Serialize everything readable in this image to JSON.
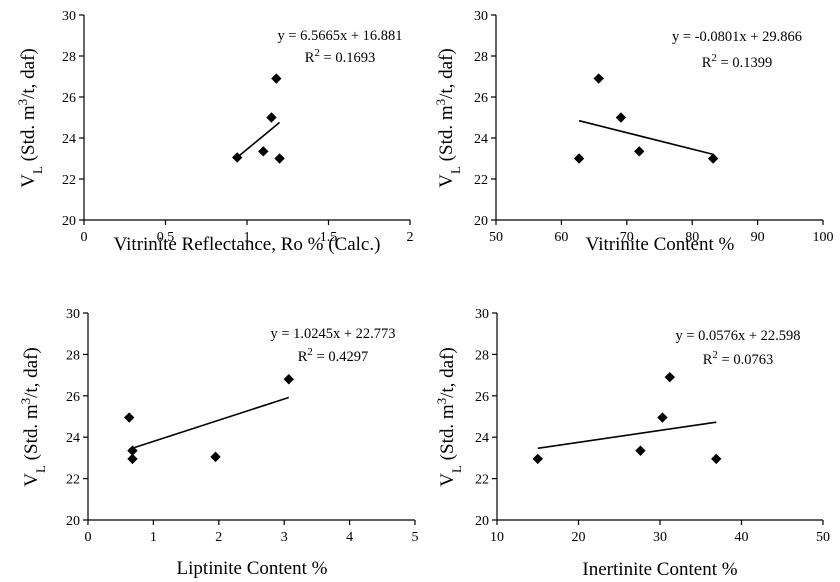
{
  "chart_data": [
    {
      "type": "scatter",
      "xlabel": "Vitrinite Reflectance, Ro % (Calc.)",
      "ylabel": {
        "base": "V",
        "sub": "L",
        "pre": " (Std. m",
        "sup": "3",
        "post": "/t, daf)"
      },
      "xlim": [
        0,
        2
      ],
      "ylim": [
        20,
        30
      ],
      "xticks": [
        "0",
        "0.5",
        "1",
        "1.5",
        "2"
      ],
      "yticks": [
        "20",
        "22",
        "24",
        "26",
        "28",
        "30"
      ],
      "points": [
        {
          "x": 0.94,
          "y": 23.05
        },
        {
          "x": 1.1,
          "y": 23.35
        },
        {
          "x": 1.15,
          "y": 25.0
        },
        {
          "x": 1.18,
          "y": 26.9
        },
        {
          "x": 1.2,
          "y": 23.0
        }
      ],
      "trendline": {
        "slope": 6.5665,
        "intercept": 16.881,
        "x_range": [
          0.94,
          1.2
        ]
      },
      "equation": "y = 6.5665x + 16.881",
      "r2": {
        "base": "R",
        "sup": "2",
        "value": " = 0.1693"
      },
      "grid": false,
      "legend": "none"
    },
    {
      "type": "scatter",
      "xlabel": "Vitrinite Content %",
      "ylabel": {
        "base": "V",
        "sub": "L",
        "pre": " (Std. m",
        "sup": "3",
        "post": "/t, daf)"
      },
      "xlim": [
        50,
        100
      ],
      "ylim": [
        20,
        30
      ],
      "xticks": [
        "50",
        "60",
        "70",
        "80",
        "90",
        "100"
      ],
      "yticks": [
        "20",
        "22",
        "24",
        "26",
        "28",
        "30"
      ],
      "points": [
        {
          "x": 62.7,
          "y": 23.0
        },
        {
          "x": 65.7,
          "y": 26.9
        },
        {
          "x": 69.1,
          "y": 25.0
        },
        {
          "x": 71.9,
          "y": 23.35
        },
        {
          "x": 83.2,
          "y": 23.0
        }
      ],
      "trendline": {
        "slope": -0.0801,
        "intercept": 29.866,
        "x_range": [
          62.7,
          83.2
        ]
      },
      "equation": "y = -0.0801x + 29.866",
      "r2": {
        "base": "R",
        "sup": "2",
        "value": " = 0.1399"
      },
      "grid": false,
      "legend": "none"
    },
    {
      "type": "scatter",
      "xlabel": "Liptinite Content %",
      "ylabel": {
        "base": "V",
        "sub": "L",
        "pre": " (Std. m",
        "sup": "3",
        "post": "/t, daf)"
      },
      "xlim": [
        0,
        5
      ],
      "ylim": [
        20,
        30
      ],
      "xticks": [
        "0",
        "1",
        "2",
        "3",
        "4",
        "5"
      ],
      "yticks": [
        "20",
        "22",
        "24",
        "26",
        "28",
        "30"
      ],
      "points": [
        {
          "x": 0.63,
          "y": 24.95
        },
        {
          "x": 0.68,
          "y": 23.35
        },
        {
          "x": 0.68,
          "y": 22.95
        },
        {
          "x": 1.95,
          "y": 23.05
        },
        {
          "x": 3.07,
          "y": 26.8
        }
      ],
      "trendline": {
        "slope": 1.0245,
        "intercept": 22.773,
        "x_range": [
          0.63,
          3.07
        ]
      },
      "equation": "y = 1.0245x + 22.773",
      "r2": {
        "base": "R",
        "sup": "2",
        "value": " = 0.4297"
      },
      "grid": false,
      "legend": "none"
    },
    {
      "type": "scatter",
      "xlabel": "Inertinite Content %",
      "ylabel": {
        "base": "V",
        "sub": "L",
        "pre": " (Std. m",
        "sup": "3",
        "post": "/t, daf)"
      },
      "xlim": [
        10,
        50
      ],
      "ylim": [
        20,
        30
      ],
      "xticks": [
        "10",
        "20",
        "30",
        "40",
        "50"
      ],
      "yticks": [
        "20",
        "22",
        "24",
        "26",
        "28",
        "30"
      ],
      "points": [
        {
          "x": 15.0,
          "y": 22.95
        },
        {
          "x": 27.6,
          "y": 23.35
        },
        {
          "x": 30.3,
          "y": 24.95
        },
        {
          "x": 31.2,
          "y": 26.9
        },
        {
          "x": 36.9,
          "y": 22.95
        }
      ],
      "trendline": {
        "slope": 0.0576,
        "intercept": 22.598,
        "x_range": [
          15.0,
          36.9
        ]
      },
      "equation": "y = 0.0576x + 22.598",
      "r2": {
        "base": "R",
        "sup": "2",
        "value": " = 0.0763"
      },
      "grid": false,
      "legend": "none"
    }
  ]
}
